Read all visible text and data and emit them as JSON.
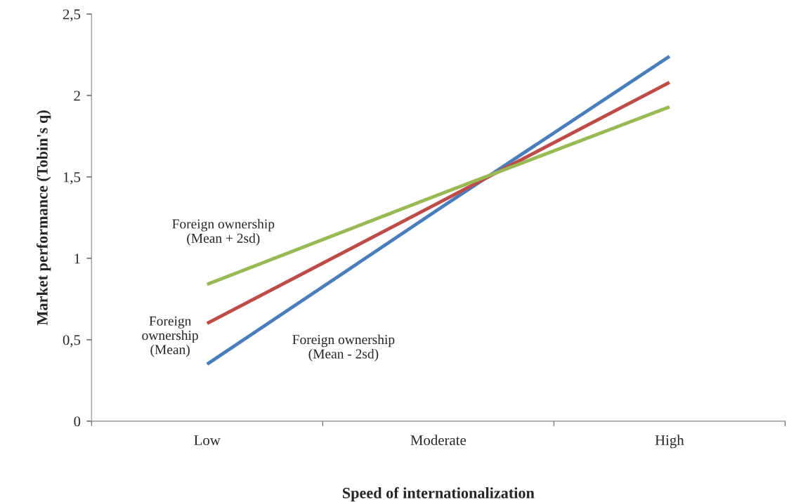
{
  "chart_data": {
    "type": "line",
    "xlabel": "Speed of internationalization",
    "ylabel": "Market performance (Tobin's q)",
    "categories": [
      "Low",
      "Moderate",
      "High"
    ],
    "series": [
      {
        "name": "Foreign ownership\n(Mean - 2sd)",
        "color": "#4a7ebb",
        "values": [
          0.35,
          1.3,
          2.24
        ]
      },
      {
        "name": "Foreign\nownership\n(Mean)",
        "color": "#be4b48",
        "values": [
          0.6,
          1.34,
          2.08
        ]
      },
      {
        "name": "Foreign ownership\n(Mean + 2sd)",
        "color": "#98b954",
        "values": [
          0.84,
          1.39,
          1.93
        ]
      }
    ],
    "ylim": [
      0,
      2.5
    ],
    "yticks": [
      {
        "value": 0,
        "label": "0"
      },
      {
        "value": 0.5,
        "label": "0,5"
      },
      {
        "value": 1,
        "label": "1"
      },
      {
        "value": 1.5,
        "label": "1,5"
      },
      {
        "value": 2,
        "label": "2"
      },
      {
        "value": 2.5,
        "label": "2,5"
      }
    ],
    "grid": false,
    "legend": false,
    "marker": "none",
    "line_style": "solid"
  }
}
